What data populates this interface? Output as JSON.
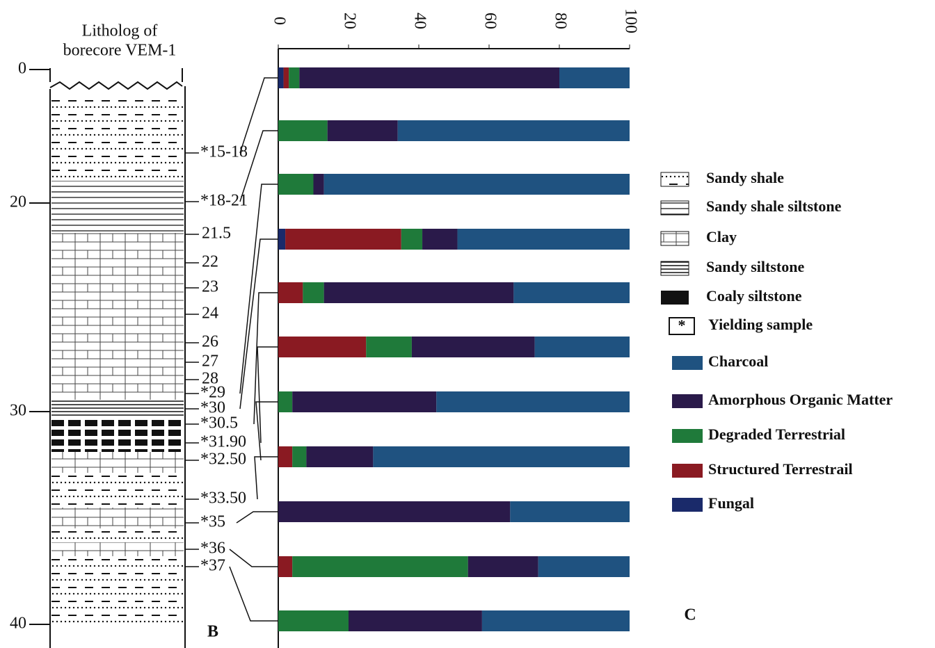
{
  "litholog": {
    "title_lines": [
      "Litholog of",
      "borecore VEM-1"
    ],
    "depth_ticks": [
      0,
      20,
      30,
      40
    ],
    "depth_labels": [
      "21.5",
      "22",
      "23",
      "24",
      "26",
      "27",
      "28"
    ],
    "panel_label": "B",
    "legend": [
      "Sandy shale",
      "Sandy shale siltstone",
      "Clay",
      "Sandy siltstone",
      "Coaly siltstone",
      "Yielding sample"
    ],
    "yielding_symbol": "*"
  },
  "chart_data": {
    "type": "stacked_barh",
    "panel_label": "C",
    "categories": [
      "*15-18",
      "*18-21",
      "*29",
      "*30",
      "*30.5",
      "*31.90",
      "*32.50",
      "*33.50",
      "*35",
      "*36",
      "*37"
    ],
    "xlim": [
      0,
      100
    ],
    "xticks": [
      0,
      20,
      40,
      60,
      80,
      100
    ],
    "series": [
      {
        "name": "Charcoal",
        "color": "#1f5280",
        "values": [
          20,
          66,
          87,
          49,
          33,
          27,
          55,
          73,
          34,
          26,
          42
        ]
      },
      {
        "name": "Amorphous Organic Matter",
        "color": "#2a1a4a",
        "values": [
          74,
          20,
          3,
          10,
          54,
          35,
          41,
          19,
          66,
          20,
          38
        ]
      },
      {
        "name": "Degraded Terrestrial",
        "color": "#1f7a3a",
        "values": [
          3,
          14,
          10,
          6,
          6,
          13,
          4,
          4,
          0,
          50,
          20
        ]
      },
      {
        "name": "Structured Terrestrail",
        "color": "#8a1a22",
        "values": [
          1.5,
          0,
          0,
          33,
          7,
          25,
          0,
          4,
          0,
          4,
          0
        ]
      },
      {
        "name": "Fungal",
        "color": "#1a2a6a",
        "values": [
          1.5,
          0,
          0,
          2,
          0,
          0,
          0,
          0,
          0,
          0,
          0
        ]
      }
    ]
  }
}
